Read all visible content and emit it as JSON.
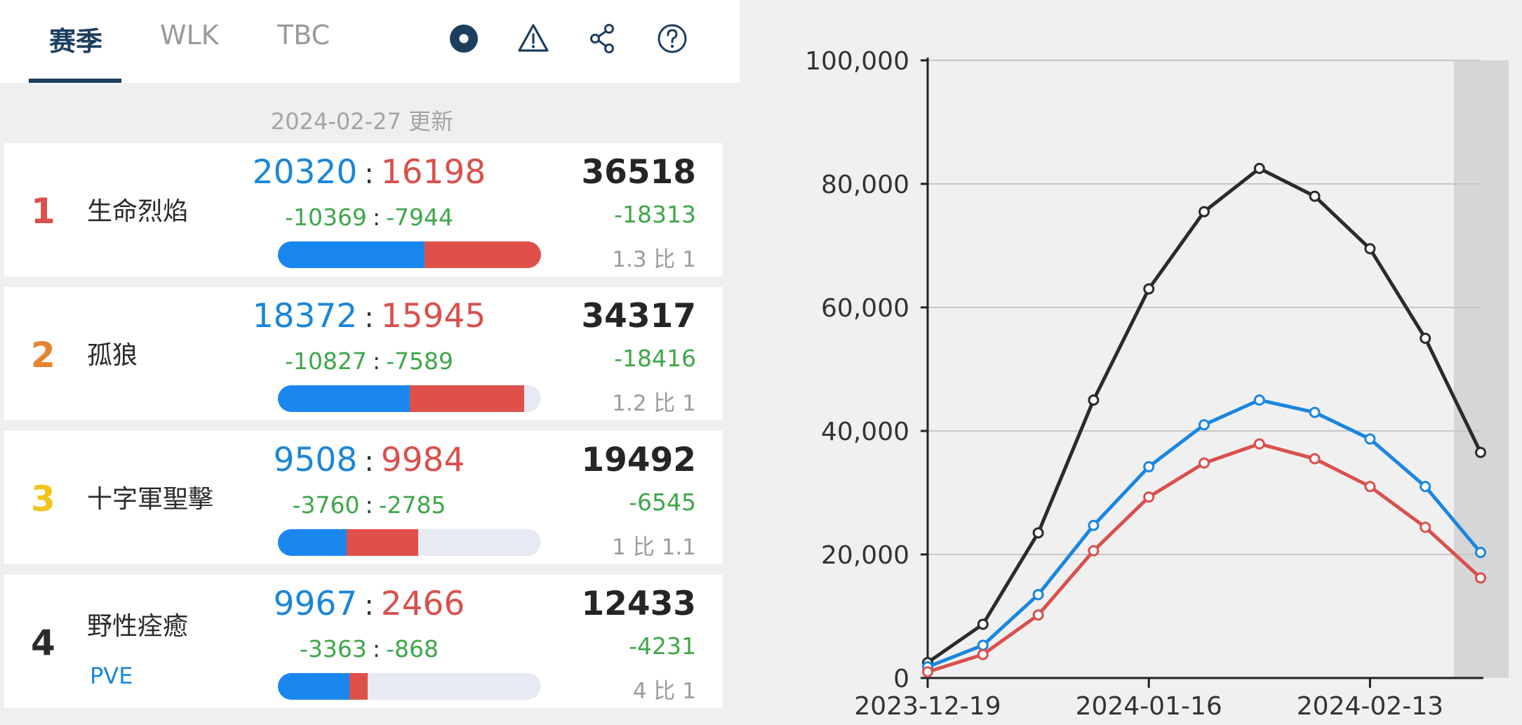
{
  "tabs": [
    {
      "label": "赛季",
      "active": true
    },
    {
      "label": "WLK",
      "active": false
    },
    {
      "label": "TBC",
      "active": false
    }
  ],
  "toolbar_icons": [
    "record-icon",
    "warning-icon",
    "share-icon",
    "help-icon"
  ],
  "update_text": "2024-02-27 更新",
  "colors": {
    "blue": "#1a86f0",
    "red": "#e0504b",
    "green": "#3fa64a",
    "dark": "#252525",
    "accent": "#1d3f5e"
  },
  "rows": [
    {
      "rank": "1",
      "rank_color": "#d9504c",
      "name": "生命烈焰",
      "tag": "",
      "a": "20320",
      "b": "16198",
      "da": "-10369",
      "db": "-7944",
      "total": "36518",
      "total_delta": "-18313",
      "compare": "1.3 比 1",
      "bar_a_pct": 55.6,
      "bar_b_pct": 44.4
    },
    {
      "rank": "2",
      "rank_color": "#e38430",
      "name": "孤狼",
      "tag": "",
      "a": "18372",
      "b": "15945",
      "da": "-10827",
      "db": "-7589",
      "total": "34317",
      "total_delta": "-18416",
      "compare": "1.2 比 1",
      "bar_a_pct": 50.1,
      "bar_b_pct": 43.5
    },
    {
      "rank": "3",
      "rank_color": "#f2c41c",
      "name": "十字軍聖擊",
      "tag": "",
      "a": "9508",
      "b": "9984",
      "da": "-3760",
      "db": "-2785",
      "total": "19492",
      "total_delta": "-6545",
      "compare": "1 比 1.1",
      "bar_a_pct": 26.0,
      "bar_b_pct": 27.3
    },
    {
      "rank": "4",
      "rank_color": "#2c2c2c",
      "name": "野性痊癒",
      "tag": "PVE",
      "a": "9967",
      "b": "2466",
      "da": "-3363",
      "db": "-868",
      "total": "12433",
      "total_delta": "-4231",
      "compare": "4 比 1",
      "bar_a_pct": 27.3,
      "bar_b_pct": 6.7
    }
  ],
  "chart_data": {
    "type": "line",
    "x": [
      "2023-12-19",
      "2023-12-26",
      "2024-01-02",
      "2024-01-09",
      "2024-01-16",
      "2024-01-23",
      "2024-01-30",
      "2024-02-06",
      "2024-02-13",
      "2024-02-20",
      "2024-02-27"
    ],
    "x_tick_labels": [
      "2023-12-19",
      "2024-01-16",
      "2024-02-13"
    ],
    "ylim": [
      0,
      100000
    ],
    "y_ticks": [
      "0",
      "20,000",
      "40,000",
      "60,000",
      "80,000",
      "100,000"
    ],
    "grid": true,
    "shaded_last_period": true,
    "series": [
      {
        "color": "#2b2b2b",
        "values": [
          2500,
          8700,
          23500,
          45000,
          63000,
          75500,
          82500,
          78000,
          69500,
          55000,
          36518
        ]
      },
      {
        "color": "#1a86e0",
        "values": [
          1800,
          5300,
          13500,
          24700,
          34200,
          41000,
          45000,
          43000,
          38700,
          31000,
          20320
        ]
      },
      {
        "color": "#d9504c",
        "values": [
          1000,
          3800,
          10200,
          20600,
          29300,
          34800,
          37900,
          35500,
          31000,
          24400,
          16198
        ]
      }
    ]
  }
}
